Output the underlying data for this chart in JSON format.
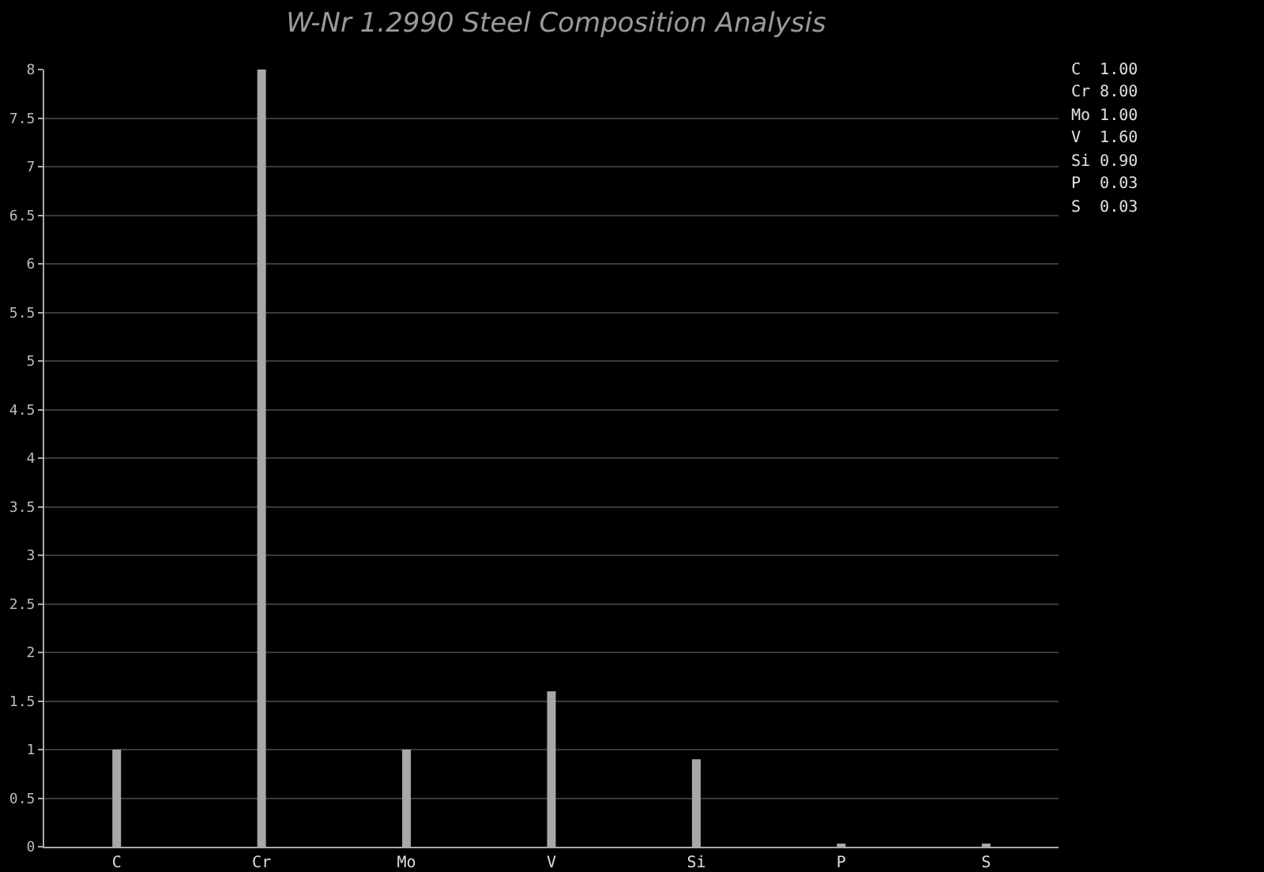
{
  "chart_data": {
    "type": "bar",
    "title": "W-Nr 1.2990 Steel Composition Analysis",
    "categories": [
      "C",
      "Cr",
      "Mo",
      "V",
      "Si",
      "P",
      "S"
    ],
    "values": [
      1.0,
      8.0,
      1.0,
      1.6,
      0.9,
      0.03,
      0.03
    ],
    "value_labels": [
      "1.00",
      "8.00",
      "1.00",
      "1.60",
      "0.90",
      "0.03",
      "0.03"
    ],
    "color": "#a8a8a8",
    "ylim": [
      0,
      8
    ],
    "yticks": [
      0,
      0.5,
      1,
      1.5,
      2,
      2.5,
      3,
      3.5,
      4,
      4.5,
      5,
      5.5,
      6,
      6.5,
      7,
      7.5,
      8
    ],
    "grid": "y",
    "legend": false
  }
}
